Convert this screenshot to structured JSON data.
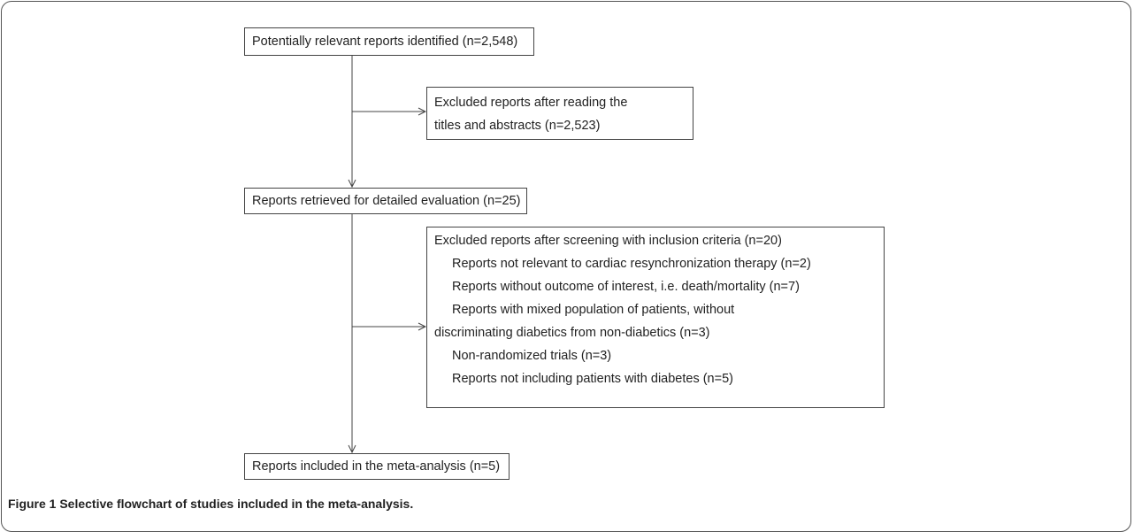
{
  "boxes": [
    {
      "lines": [
        "Potentially relevant reports identified (n=2,548)"
      ]
    },
    {
      "lines": [
        "Excluded reports after reading the",
        "titles and abstracts (n=2,523)"
      ]
    },
    {
      "lines": [
        "Reports retrieved for detailed evaluation (n=25)"
      ]
    },
    {
      "lines": [
        "Excluded reports after screening with inclusion criteria (n=20)",
        "Reports not relevant to cardiac resynchronization therapy (n=2)",
        "Reports without outcome of interest, i.e. death/mortality (n=7)",
        "Reports with mixed population of patients, without",
        "discriminating diabetics from non-diabetics (n=3)",
        "Non-randomized trials (n=3)",
        "Reports not including patients with diabetes (n=5)"
      ]
    },
    {
      "lines": [
        "Reports included in the meta-analysis (n=5)"
      ]
    }
  ],
  "caption": "Figure 1 Selective flowchart of studies included in the meta-analysis."
}
